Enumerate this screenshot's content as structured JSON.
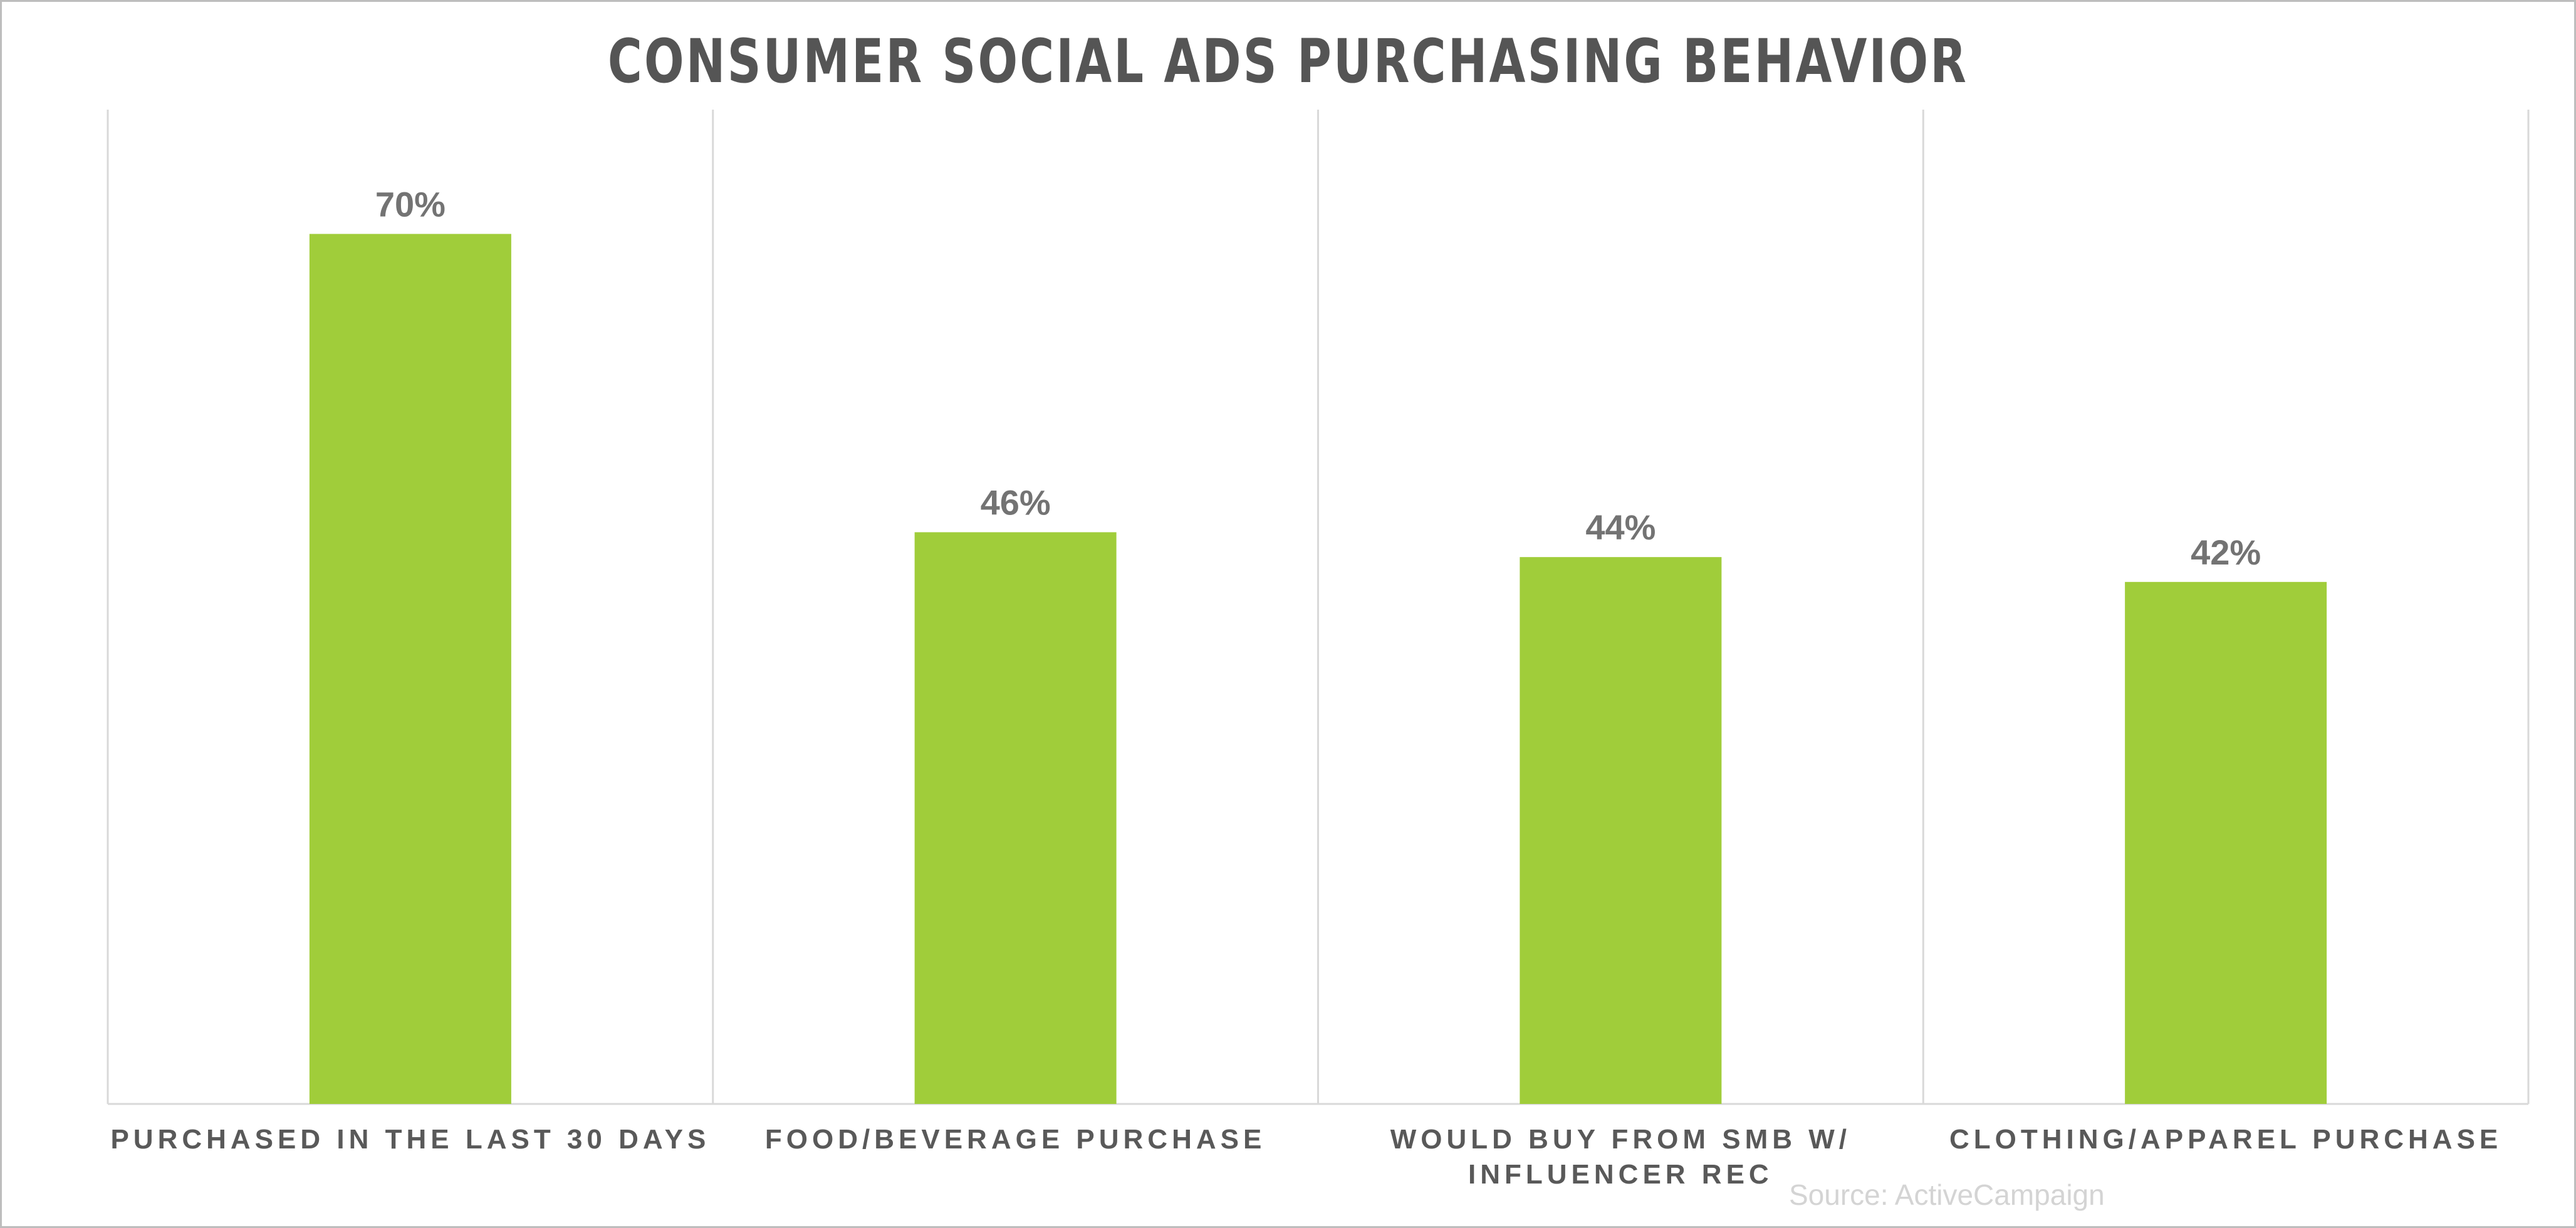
{
  "chart_data": {
    "type": "bar",
    "title": "CONSUMER SOCIAL ADS PURCHASING BEHAVIOR",
    "categories": [
      [
        "PURCHASED IN THE LAST 30 DAYS"
      ],
      [
        "FOOD/BEVERAGE PURCHASE"
      ],
      [
        "WOULD BUY FROM SMB W/",
        "INFLUENCER REC"
      ],
      [
        "CLOTHING/APPAREL PURCHASE"
      ]
    ],
    "values": [
      70,
      46,
      44,
      42
    ],
    "value_labels": [
      "70%",
      "46%",
      "44%",
      "42%"
    ],
    "ylim": [
      0,
      80
    ],
    "xlabel": "",
    "ylabel": "",
    "grid": "vertical separators",
    "legend": "none",
    "source": "Source: ActiveCampaign",
    "colors": {
      "bar": "#a0cd3a",
      "gridline": "#d9d9d9",
      "value_label": "#737373",
      "category_label": "#595959",
      "title": "#555555",
      "source": "#d4d4d4"
    }
  }
}
